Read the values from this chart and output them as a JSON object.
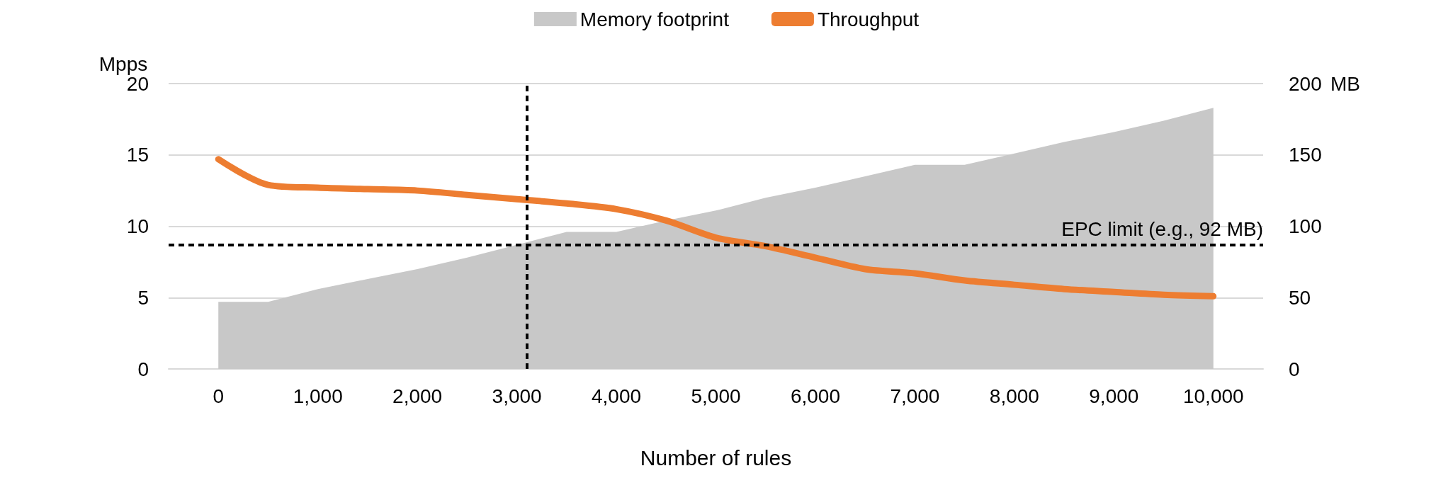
{
  "chart_data": {
    "type": "area",
    "xlabel": "Number of rules",
    "ylabel": "Mpps",
    "y2label": "MB",
    "x": [
      0,
      500,
      1000,
      1500,
      2000,
      2500,
      3000,
      3500,
      4000,
      4500,
      5000,
      5500,
      6000,
      6500,
      7000,
      7500,
      8000,
      8500,
      9000,
      9500,
      10000
    ],
    "series": [
      {
        "name": "Memory footprint",
        "axis": "y2",
        "color": "#c8c8c8",
        "values": [
          47,
          47,
          56,
          63,
          70,
          78,
          87,
          96,
          96,
          104,
          111,
          120,
          127,
          135,
          143,
          143,
          151,
          159,
          166,
          174,
          183
        ]
      },
      {
        "name": "Throughput",
        "type": "line",
        "color": "#ed7d31",
        "values": [
          14.7,
          12.9,
          12.7,
          12.6,
          12.5,
          12.2,
          11.9,
          11.6,
          11.2,
          10.4,
          9.2,
          8.6,
          7.8,
          7.0,
          6.7,
          6.2,
          5.9,
          5.6,
          5.4,
          5.2,
          5.1
        ]
      }
    ],
    "xlim": [
      -500,
      10500
    ],
    "xticks": [
      0,
      {
        "value": 1000,
        "label": "1,000"
      },
      {
        "value": 2000,
        "label": "2,000"
      },
      {
        "value": 3000,
        "label": "3,000"
      },
      {
        "value": 4000,
        "label": "4,000"
      },
      {
        "value": 5000,
        "label": "5,000"
      },
      {
        "value": 6000,
        "label": "6,000"
      },
      {
        "value": 7000,
        "label": "7,000"
      },
      {
        "value": 8000,
        "label": "8,000"
      },
      {
        "value": 9000,
        "label": "9,000"
      },
      {
        "value": 10000,
        "label": "10,000"
      }
    ],
    "ylim": [
      0,
      20
    ],
    "yticks": [
      0,
      5,
      10,
      15,
      20
    ],
    "y2lim": [
      0,
      200
    ],
    "y2ticks": [
      0,
      50,
      100,
      150,
      200
    ],
    "ref_lines": [
      {
        "axis": "y2",
        "value": 87,
        "label": "EPC limit (e.g., 92 MB)",
        "color": "#000000",
        "line_style": "dashed"
      },
      {
        "axis": "x",
        "value": 3100,
        "label": null,
        "color": "#000000",
        "line_style": "dashed"
      }
    ],
    "grid": "y",
    "legend": "top",
    "line_style": "solid"
  }
}
